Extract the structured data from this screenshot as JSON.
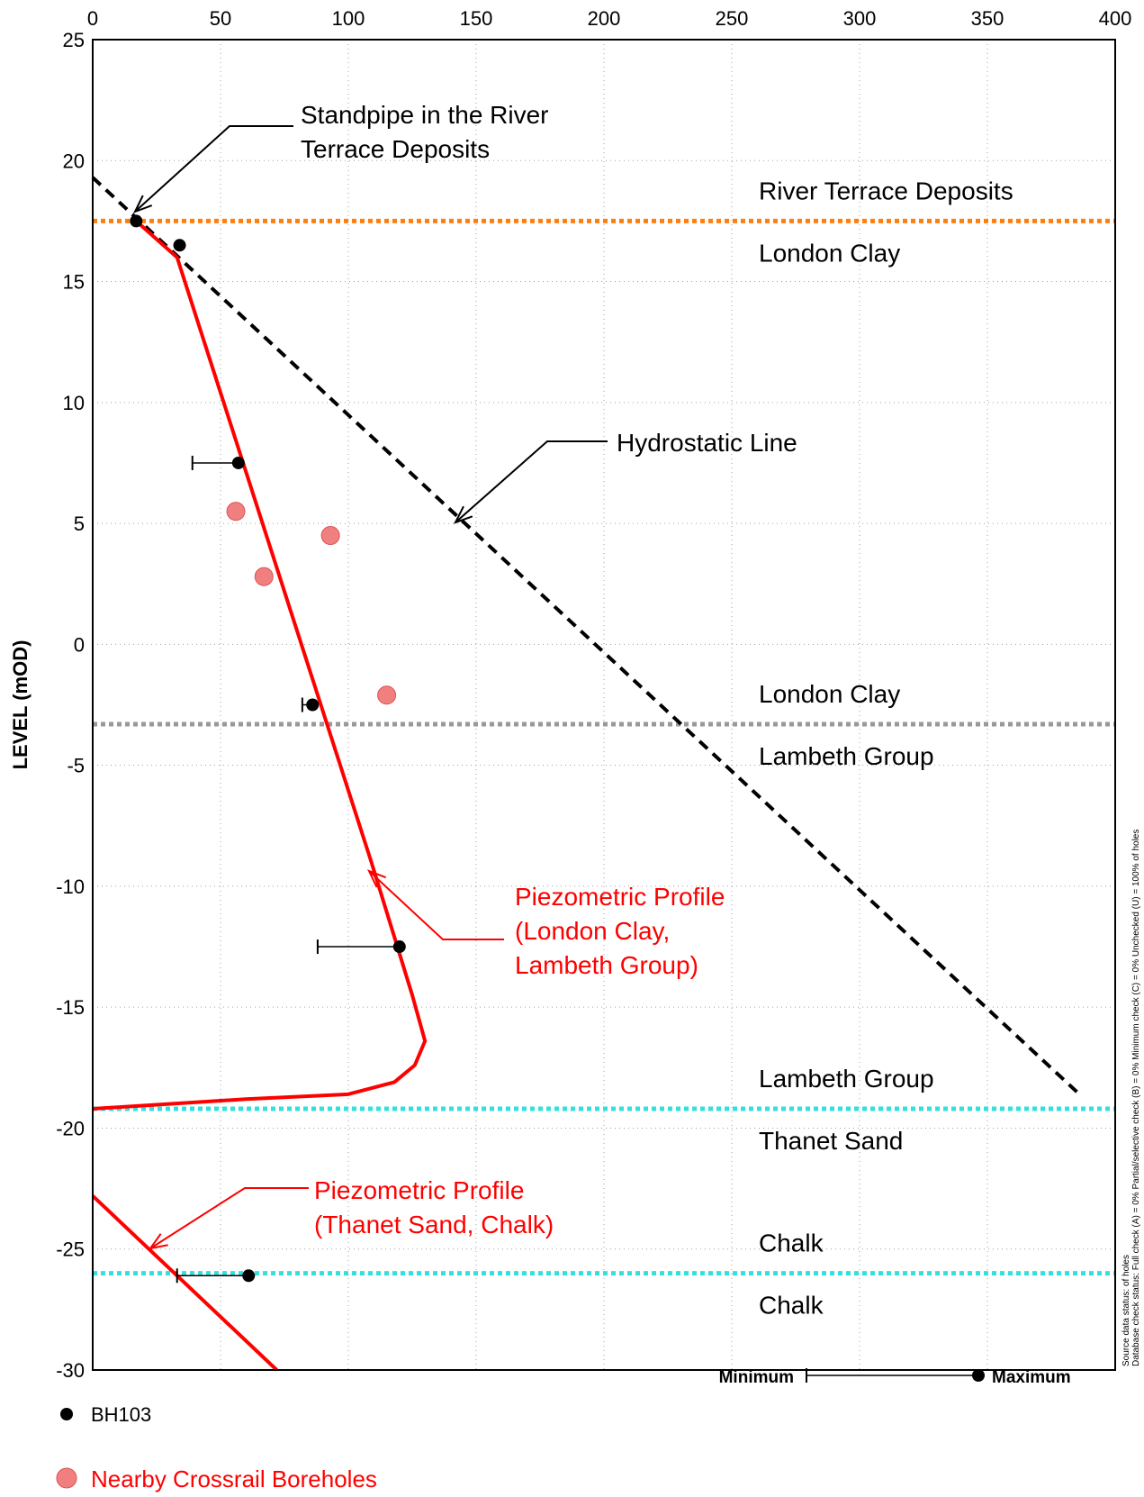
{
  "chart_data": {
    "type": "scatter",
    "xlim": [
      0,
      400
    ],
    "ylim": [
      -30,
      25
    ],
    "x_ticks": [
      0,
      50,
      100,
      150,
      200,
      250,
      300,
      350,
      400
    ],
    "y_ticks": [
      25,
      20,
      15,
      10,
      5,
      0,
      -5,
      -10,
      -15,
      -20,
      -25,
      -30
    ],
    "ylabel": "LEVEL (mOD)",
    "grid": true,
    "strata_boundaries": [
      {
        "level": 17.5,
        "color": "#ff7f0e",
        "above": "River Terrace Deposits",
        "below": "London Clay"
      },
      {
        "level": -3.3,
        "color": "#999999",
        "above": "London Clay",
        "below": "Lambeth Group"
      },
      {
        "level": -19.2,
        "color": "#33e0e0",
        "above": "Lambeth Group",
        "below": "Thanet Sand"
      },
      {
        "level": -26.0,
        "color": "#33e0e0",
        "above": "Chalk",
        "below": "Chalk"
      }
    ],
    "hydrostatic_line": {
      "points": [
        [
          0,
          19.3
        ],
        [
          385,
          -18.5
        ]
      ],
      "color": "#000000"
    },
    "piezometric_profiles": [
      {
        "color": "#ff0000",
        "points": [
          [
            17,
            17.5
          ],
          [
            33,
            16
          ],
          [
            109,
            -9
          ],
          [
            125,
            -14.5
          ],
          [
            130,
            -16.4
          ],
          [
            126,
            -17.4
          ],
          [
            118,
            -18.1
          ],
          [
            100,
            -18.6
          ],
          [
            60,
            -18.8
          ],
          [
            0,
            -19.2
          ]
        ]
      },
      {
        "color": "#ff0000",
        "points": [
          [
            0,
            -22.8
          ],
          [
            72,
            -30
          ]
        ]
      }
    ],
    "series": [
      {
        "name": "BH103",
        "color": "#000000",
        "points": [
          {
            "x": 17,
            "y": 17.5
          },
          {
            "x": 34,
            "y": 16.5
          },
          {
            "x": 57,
            "y": 7.5,
            "min": 39
          },
          {
            "x": 86,
            "y": -2.5,
            "min": 82
          },
          {
            "x": 120,
            "y": -12.5,
            "min": 88
          },
          {
            "x": 61,
            "y": -26.1,
            "min": 33
          }
        ]
      },
      {
        "name": "Nearby Crossrail Boreholes",
        "color": "#f08080",
        "points": [
          {
            "x": 56,
            "y": 5.5
          },
          {
            "x": 93,
            "y": 4.5
          },
          {
            "x": 67,
            "y": 2.8
          },
          {
            "x": 115,
            "y": -2.1
          }
        ]
      }
    ],
    "annotations": [
      {
        "lines": [
          "Standpipe in the River",
          "Terrace Deposits"
        ],
        "color": "#000000"
      },
      {
        "lines": [
          "Hydrostatic Line"
        ],
        "color": "#000000"
      },
      {
        "lines": [
          "Piezometric Profile",
          "(London Clay,",
          "Lambeth Group)"
        ],
        "color": "#ff0000"
      },
      {
        "lines": [
          "Piezometric Profile",
          "(Thanet Sand, Chalk)"
        ],
        "color": "#ff0000"
      }
    ],
    "range_legend": {
      "min_label": "Minimum",
      "max_label": "Maximum"
    },
    "side_note": [
      "Source data status:  of holes",
      "Database check status:  Full check (A) = 0%  Partial/selective check (B) = 0%  Minimum check (C) = 0%  Unchecked (U) = 100% of holes"
    ]
  }
}
